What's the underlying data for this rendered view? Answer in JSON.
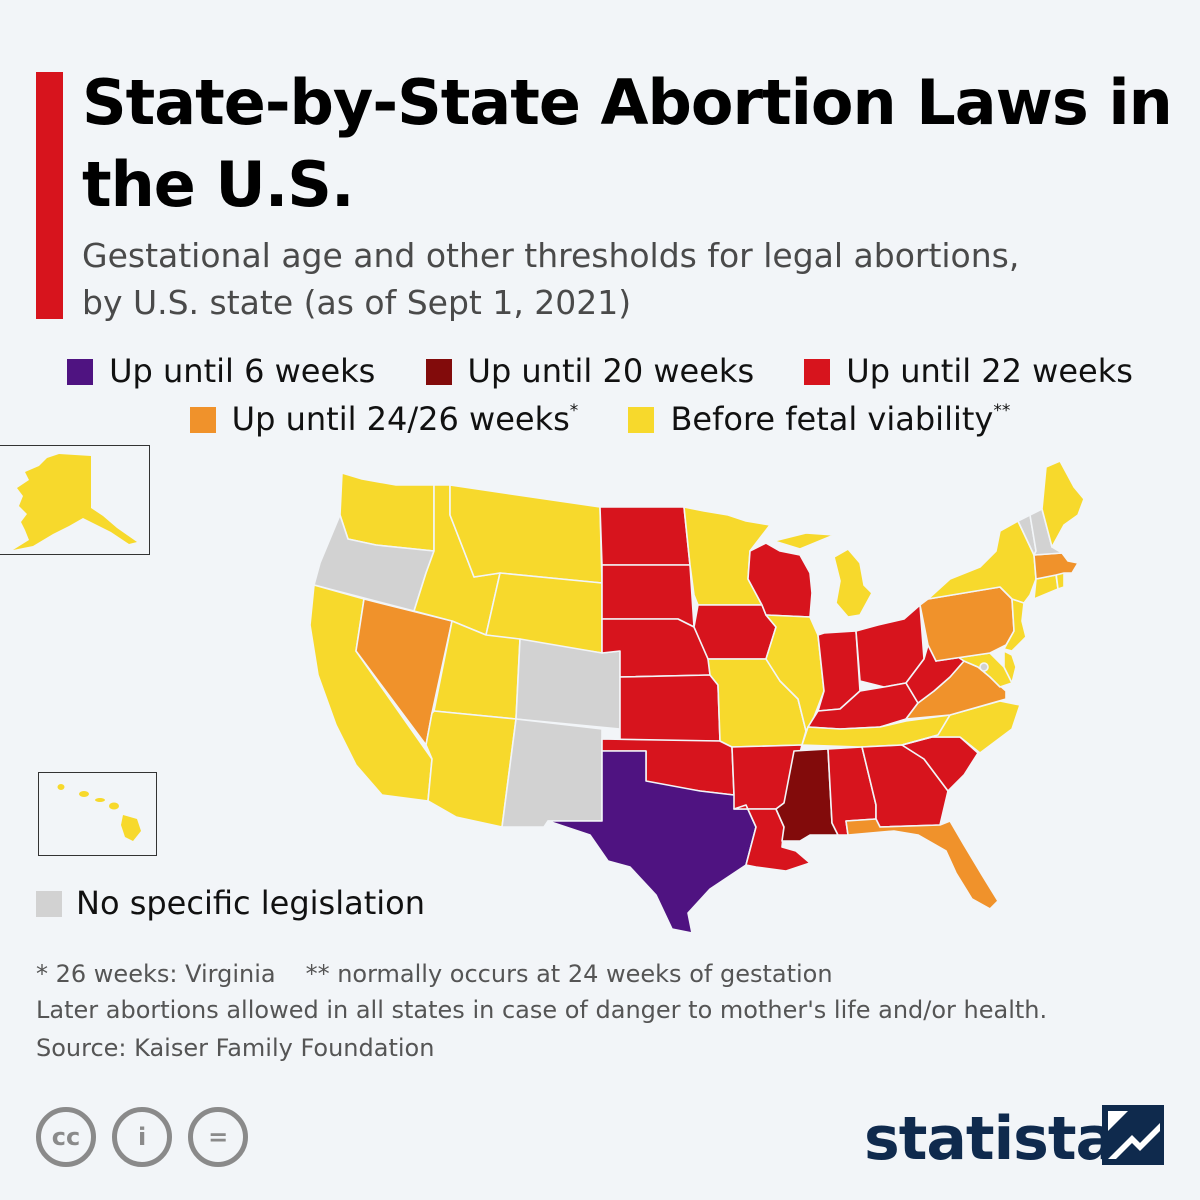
{
  "title": "State-by-State Abortion Laws in the U.S.",
  "subtitle_line1": "Gestational age and other thresholds for legal abortions,",
  "subtitle_line2": "by U.S. state (as of Sept 1, 2021)",
  "legend": [
    {
      "key": "w6",
      "label": "Up until 6 weeks",
      "color": "#4f1381"
    },
    {
      "key": "w20",
      "label": "Up until 20 weeks",
      "color": "#820b0b"
    },
    {
      "key": "w22",
      "label": "Up until 22 weeks",
      "color": "#d7141d"
    },
    {
      "key": "w24",
      "label": "Up until 24/26 weeks",
      "marker": "*",
      "color": "#f0922b"
    },
    {
      "key": "viab",
      "label": "Before fetal viability",
      "marker": "**",
      "color": "#f7d92c"
    },
    {
      "key": "none",
      "label": "No specific legislation",
      "color": "#d2d2d2"
    }
  ],
  "state_categories": {
    "w6": [
      "TX"
    ],
    "w20": [
      "MS"
    ],
    "w22": [
      "ND",
      "SD",
      "NE",
      "KS",
      "OK",
      "IA",
      "WI",
      "AR",
      "LA",
      "IN",
      "OH",
      "KY",
      "WV",
      "AL",
      "GA",
      "SC"
    ],
    "w24": [
      "NV",
      "PA",
      "VA",
      "FL",
      "MA"
    ],
    "viab": [
      "WA",
      "CA",
      "ID",
      "MT",
      "WY",
      "UT",
      "AZ",
      "MN",
      "MI",
      "IL",
      "MO",
      "TN",
      "NC",
      "NY",
      "ME",
      "CT",
      "RI",
      "NJ",
      "DE",
      "MD",
      "AK",
      "HI"
    ],
    "none": [
      "OR",
      "CO",
      "NM",
      "VT",
      "NH",
      "DC"
    ]
  },
  "footnote_1": "* 26 weeks: Virginia",
  "footnote_2": "** normally occurs at 24 weeks of gestation",
  "footnote_3": "Later abortions allowed in all states in case of danger to mother's life and/or health.",
  "source": "Source: Kaiser Family Foundation",
  "license_icons": [
    "cc-icon",
    "by-icon",
    "nd-icon"
  ],
  "license_icon_text": {
    "cc": "cc",
    "by": "i",
    "nd": "="
  },
  "brand": "statista",
  "brand_color": "#0f2a4d"
}
